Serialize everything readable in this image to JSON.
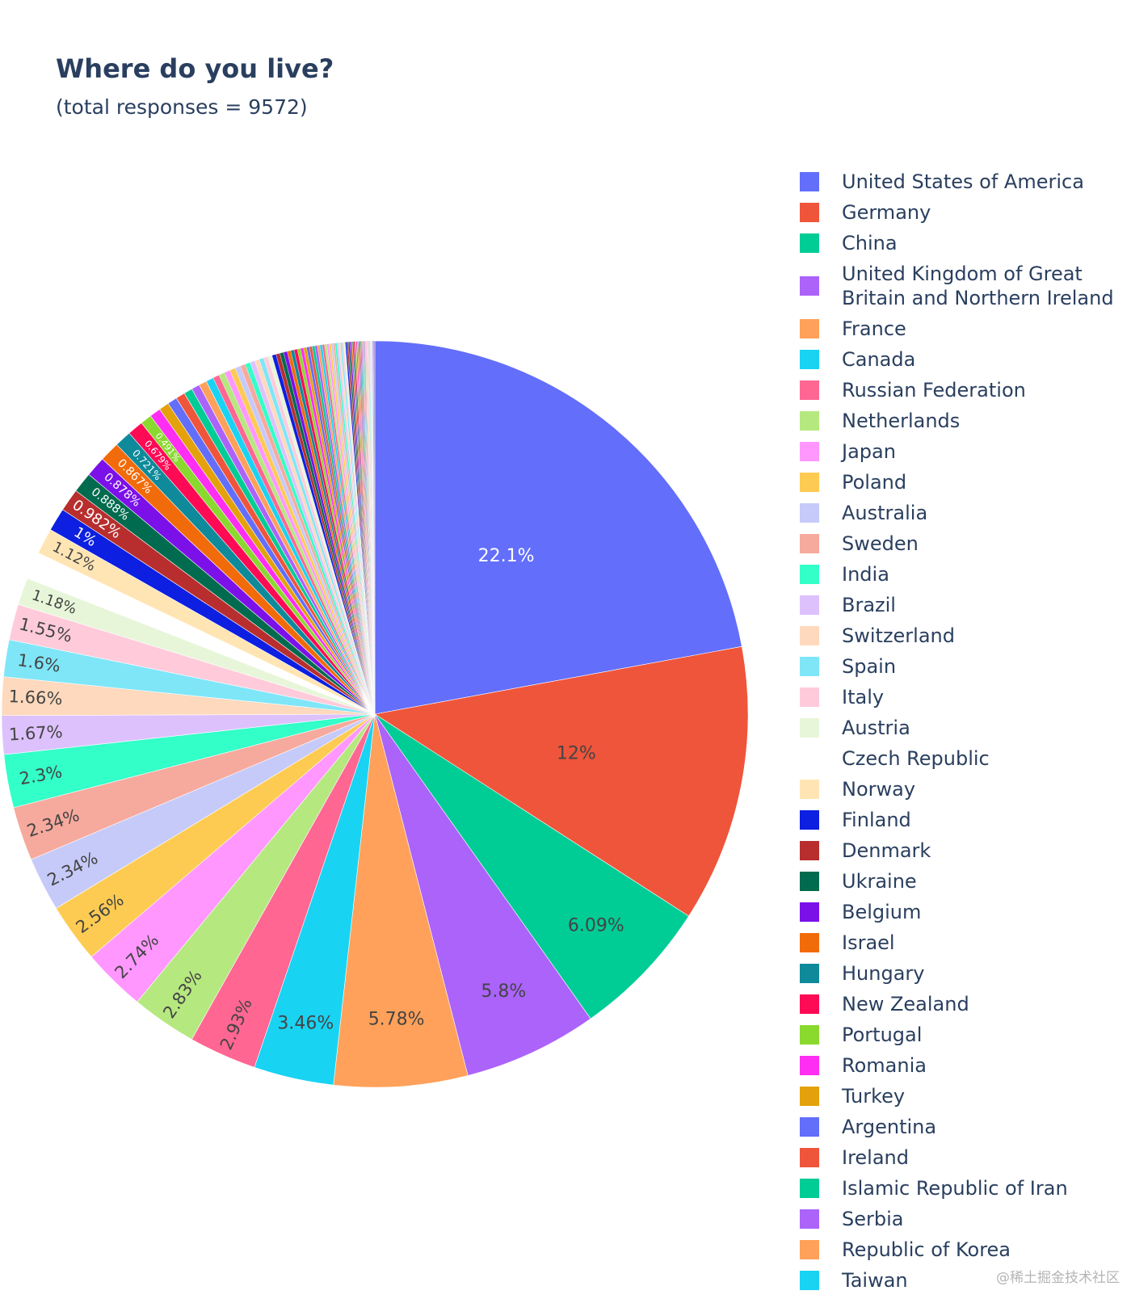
{
  "chart_data": {
    "type": "pie",
    "title": "Where do you live?",
    "subtitle": "(total responses = 9572)",
    "slices": [
      {
        "label": "United States of America",
        "value": 22.1,
        "text": "22.1%",
        "color": "#636efa"
      },
      {
        "label": "Germany",
        "value": 12,
        "text": "12%",
        "color": "#ef553b"
      },
      {
        "label": "China",
        "value": 6.09,
        "text": "6.09%",
        "color": "#00cc96"
      },
      {
        "label": "United Kingdom of Great Britain and Northern Ireland",
        "value": 5.8,
        "text": "5.8%",
        "color": "#ab63fa"
      },
      {
        "label": "France",
        "value": 5.78,
        "text": "5.78%",
        "color": "#ffa15a"
      },
      {
        "label": "Canada",
        "value": 3.46,
        "text": "3.46%",
        "color": "#19d3f3"
      },
      {
        "label": "Russian Federation",
        "value": 2.93,
        "text": "2.93%",
        "color": "#ff6692"
      },
      {
        "label": "Netherlands",
        "value": 2.83,
        "text": "2.83%",
        "color": "#b6e880"
      },
      {
        "label": "Japan",
        "value": 2.74,
        "text": "2.74%",
        "color": "#ff97ff"
      },
      {
        "label": "Poland",
        "value": 2.56,
        "text": "2.56%",
        "color": "#fecb52"
      },
      {
        "label": "Australia",
        "value": 2.34,
        "text": "2.34%",
        "color": "#c6caf9"
      },
      {
        "label": "Sweden",
        "value": 2.34,
        "text": "2.34%",
        "color": "#f6aa9d"
      },
      {
        "label": "India",
        "value": 2.3,
        "text": "2.3%",
        "color": "#33ffc8"
      },
      {
        "label": "Brazil",
        "value": 1.67,
        "text": "1.67%",
        "color": "#ddc1fc"
      },
      {
        "label": "Switzerland",
        "value": 1.66,
        "text": "1.66%",
        "color": "#ffd9bd"
      },
      {
        "label": "Spain",
        "value": 1.6,
        "text": "1.6%",
        "color": "#7fe6f8"
      },
      {
        "label": "Italy",
        "value": 1.55,
        "text": "1.55%",
        "color": "#ffcbdb"
      },
      {
        "label": "Austria",
        "value": 1.18,
        "text": "1.18%",
        "color": "#e7f6d9"
      },
      {
        "label": "Czech Republic",
        "value": 1.18,
        "text": "",
        "color": "#ffffff"
      },
      {
        "label": "Norway",
        "value": 1.12,
        "text": "1.12%",
        "color": "#ffe5b4"
      },
      {
        "label": "Finland",
        "value": 1.0,
        "text": "1%",
        "color": "#0d1fe0"
      },
      {
        "label": "Denmark",
        "value": 0.982,
        "text": "0.982%",
        "color": "#b82e2e"
      },
      {
        "label": "Ukraine",
        "value": 0.888,
        "text": "0.888%",
        "color": "#006b4e"
      },
      {
        "label": "Belgium",
        "value": 0.878,
        "text": "0.878%",
        "color": "#7b11e8"
      },
      {
        "label": "Israel",
        "value": 0.867,
        "text": "0.867%",
        "color": "#f26b0a"
      },
      {
        "label": "Hungary",
        "value": 0.721,
        "text": "0.721%",
        "color": "#0e8a9a"
      },
      {
        "label": "New Zealand",
        "value": 0.679,
        "text": "0.679%",
        "color": "#ff0a54"
      },
      {
        "label": "Portugal",
        "value": 0.491,
        "text": "0.491%",
        "color": "#8ad92f"
      },
      {
        "label": "Romania",
        "value": 0.48,
        "text": "",
        "color": "#ff2ef2"
      },
      {
        "label": "Turkey",
        "value": 0.439,
        "text": "",
        "color": "#e3a20b"
      },
      {
        "label": "Argentina",
        "value": 0.418,
        "text": "",
        "color": "#636efa"
      },
      {
        "label": "Ireland",
        "value": 0.4,
        "text": "",
        "color": "#ef553b"
      },
      {
        "label": "Islamic Republic of Iran",
        "value": 0.37,
        "text": "",
        "color": "#00cc96"
      },
      {
        "label": "Serbia",
        "value": 0.355,
        "text": "",
        "color": "#ab63fa"
      },
      {
        "label": "Republic of Korea",
        "value": 0.34,
        "text": "",
        "color": "#ffa15a"
      },
      {
        "label": "Taiwan",
        "value": 0.33,
        "text": "",
        "color": "#19d3f3"
      }
    ],
    "other_slice_palette": [
      "#ff6692",
      "#b6e880",
      "#ff97ff",
      "#fecb52",
      "#c6caf9",
      "#f6aa9d",
      "#33ffc8",
      "#ddc1fc",
      "#ffd9bd",
      "#7fe6f8",
      "#ffcbdb",
      "#e7f6d9",
      "#0d1fe0",
      "#b82e2e",
      "#006b4e",
      "#7b11e8",
      "#f26b0a",
      "#0e8a9a",
      "#ff0a54",
      "#8ad92f",
      "#ff2ef2",
      "#e3a20b",
      "#636efa",
      "#ef553b",
      "#00cc96",
      "#ab63fa",
      "#ffa15a",
      "#19d3f3"
    ],
    "text_color_dark": "#444444",
    "text_color_light": "#ffffff",
    "legend_position": "right",
    "direction": "clockwise",
    "rotation_start": "12 o'clock"
  },
  "watermark": "@稀土掘金技术社区"
}
